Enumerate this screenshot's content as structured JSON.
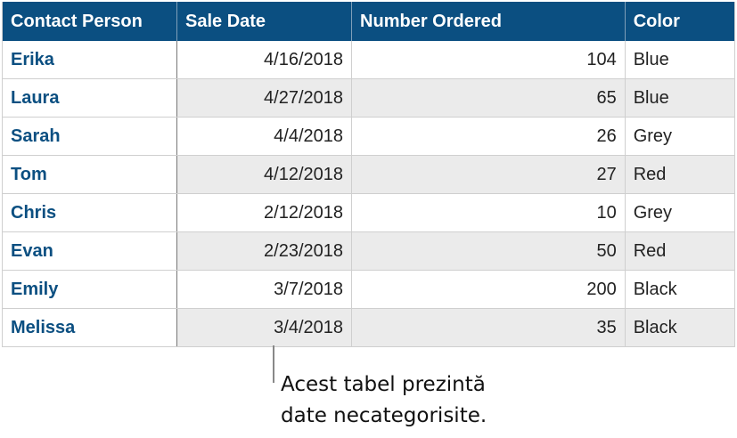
{
  "table": {
    "headers": [
      "Contact Person",
      "Sale Date",
      "Number Ordered",
      "Color"
    ],
    "rows": [
      [
        "Erika",
        "4/16/2018",
        "104",
        "Blue"
      ],
      [
        "Laura",
        "4/27/2018",
        "65",
        "Blue"
      ],
      [
        "Sarah",
        "4/4/2018",
        "26",
        "Grey"
      ],
      [
        "Tom",
        "4/12/2018",
        "27",
        "Red"
      ],
      [
        "Chris",
        "2/12/2018",
        "10",
        "Grey"
      ],
      [
        "Evan",
        "2/23/2018",
        "50",
        "Red"
      ],
      [
        "Emily",
        "3/7/2018",
        "200",
        "Black"
      ],
      [
        "Melissa",
        "3/4/2018",
        "35",
        "Black"
      ]
    ]
  },
  "callout": {
    "line1": "Acest tabel prezintă",
    "line2": "date necategorisite."
  },
  "colors": {
    "header": "#0b4f81",
    "alt_row": "#ebebeb"
  }
}
